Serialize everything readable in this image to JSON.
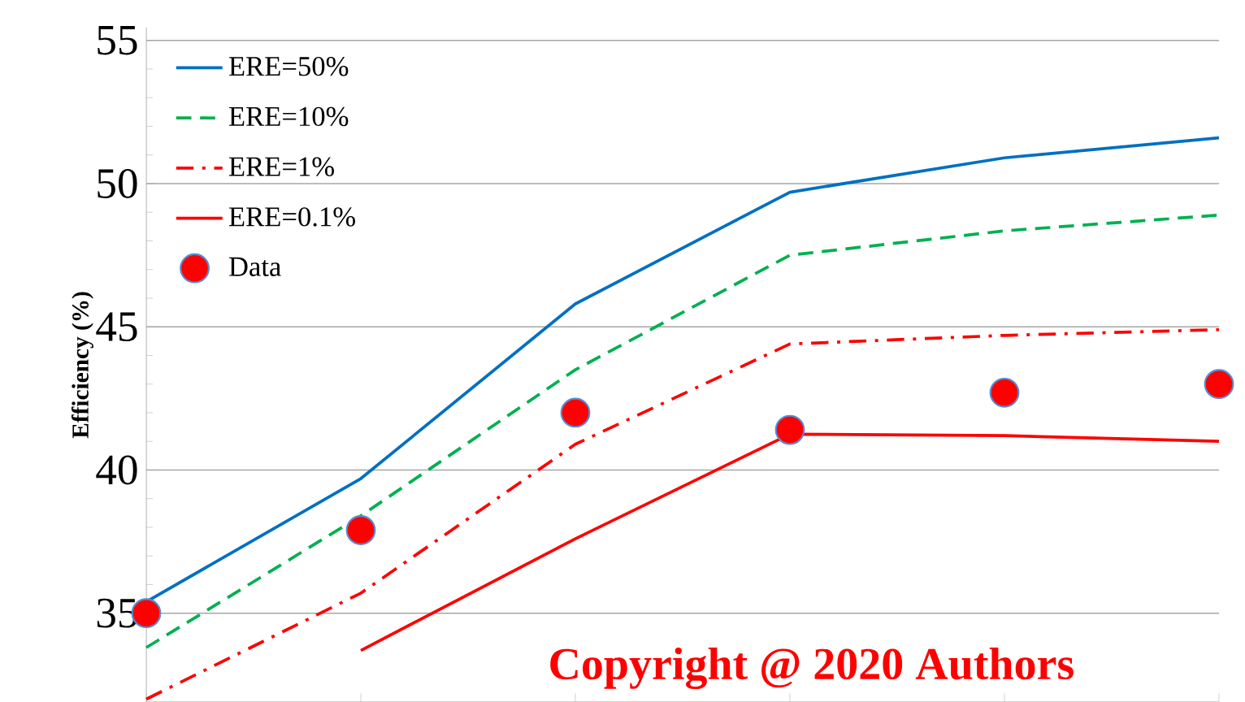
{
  "chart_data": {
    "type": "line",
    "ylabel": "Efficiency (%)",
    "categories": [
      null,
      null,
      null,
      null,
      null,
      null
    ],
    "ylim": [
      31.9,
      55.45
    ],
    "yticks": [
      35,
      40,
      45,
      50,
      55
    ],
    "tick_labels": "y",
    "grid": "y",
    "legend": "top left",
    "series": [
      {
        "name": "ERE=50%",
        "color": "#0070c0",
        "line_style": "solid",
        "values": [
          35.4,
          39.7,
          45.8,
          49.7,
          50.9,
          51.6
        ]
      },
      {
        "name": "ERE=10%",
        "color": "#00b050",
        "line_style": "dashed",
        "values": [
          33.8,
          38.4,
          43.5,
          47.5,
          48.35,
          48.9
        ]
      },
      {
        "name": "ERE=1%",
        "color": "#ff0000",
        "line_style": "dashdot",
        "values": [
          32.0,
          35.7,
          40.9,
          44.4,
          44.7,
          44.9
        ]
      },
      {
        "name": "ERE=0.1%",
        "color": "#ff0000",
        "line_style": "solid",
        "values": [
          null,
          33.7,
          37.6,
          41.25,
          41.2,
          41.0
        ]
      },
      {
        "name": "Data",
        "type": "scatter",
        "color": "#ff0000",
        "marker": "circle",
        "values": [
          35.0,
          37.9,
          42.0,
          41.4,
          42.7,
          43.0
        ]
      }
    ],
    "annotations": [
      "Copyright @ 2020 Authors"
    ]
  }
}
